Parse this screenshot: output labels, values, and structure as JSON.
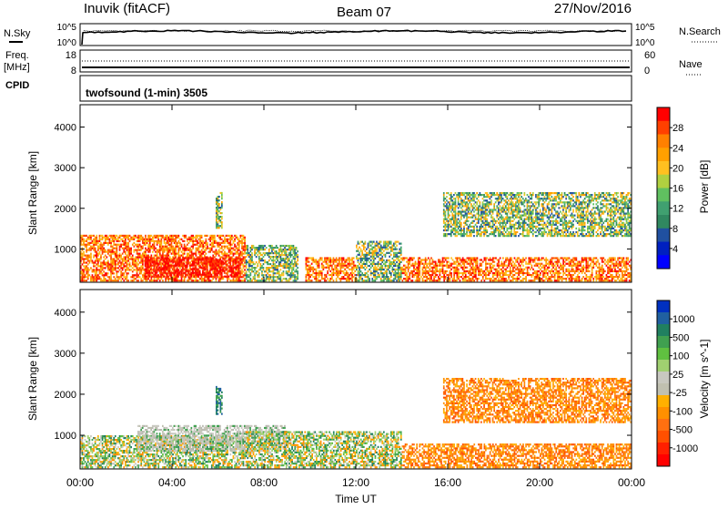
{
  "header": {
    "station": "Inuvik (fitACF)",
    "beam": "Beam 07",
    "date": "27/Nov/2016"
  },
  "noise_panel": {
    "left_label": "N.Sky",
    "right_label": "N.Search",
    "tick_top": "10^5",
    "tick_bottom": "10^0"
  },
  "freq_panel": {
    "left_label_line1": "Freq.",
    "left_label_line2": "[MHz]",
    "right_label": "Nave",
    "left_tick_top": "18",
    "left_tick_bottom": "8",
    "right_tick_top": "60",
    "right_tick_bottom": "0"
  },
  "cpid_panel": {
    "left_label": "CPID",
    "program": "twofsound (1-min) 3505"
  },
  "chart_data": [
    {
      "type": "heatmap",
      "panel": "power",
      "ylabel": "Slant Range [km]",
      "ylim": [
        180,
        4550
      ],
      "y_ticks": [
        1000,
        2000,
        3000,
        4000
      ],
      "colorbar_label": "Power [dB]",
      "colorbar_ticks": [
        "28",
        "24",
        "20",
        "16",
        "12",
        "8",
        "4"
      ],
      "colorbar_colors": [
        "#ff0000",
        "#ff4000",
        "#ff8000",
        "#ffa000",
        "#ffc020",
        "#b0d040",
        "#60c060",
        "#40a070",
        "#308860",
        "#2050a0",
        "#0020c0",
        "#0000ff"
      ],
      "echo_regions": [
        {
          "t_start": 0.0,
          "t_end": 7.2,
          "r_min": 200,
          "r_max": 1350,
          "level": "high"
        },
        {
          "t_start": 2.8,
          "t_end": 7.0,
          "r_min": 300,
          "r_max": 800,
          "level": "very_high"
        },
        {
          "t_start": 5.9,
          "t_end": 6.2,
          "r_min": 1500,
          "r_max": 2400,
          "level": "mid"
        },
        {
          "t_start": 7.2,
          "t_end": 9.5,
          "r_min": 200,
          "r_max": 1100,
          "level": "mid"
        },
        {
          "t_start": 9.8,
          "t_end": 12.0,
          "r_min": 200,
          "r_max": 800,
          "level": "high"
        },
        {
          "t_start": 12.0,
          "t_end": 14.0,
          "r_min": 200,
          "r_max": 1200,
          "level": "mid"
        },
        {
          "t_start": 14.0,
          "t_end": 24.0,
          "r_min": 200,
          "r_max": 800,
          "level": "high"
        },
        {
          "t_start": 15.8,
          "t_end": 24.0,
          "r_min": 1300,
          "r_max": 2400,
          "level": "mid"
        }
      ]
    },
    {
      "type": "heatmap",
      "panel": "velocity",
      "ylabel": "Slant Range [km]",
      "xlabel": "Time UT",
      "ylim": [
        180,
        4550
      ],
      "y_ticks": [
        1000,
        2000,
        3000,
        4000
      ],
      "x_ticks": [
        "00:00",
        "04:00",
        "08:00",
        "12:00",
        "16:00",
        "20:00",
        "00:00"
      ],
      "colorbar_label": "Velocity [m s^-1]",
      "colorbar_ticks": [
        "1000",
        "500",
        "100",
        "25",
        "-25",
        "-100",
        "-500",
        "-1000"
      ],
      "colorbar_colors": [
        "#0030c0",
        "#2060a0",
        "#208060",
        "#40a050",
        "#60c040",
        "#a0d070",
        "#c8c8c0",
        "#c0c0b0",
        "#ffb000",
        "#ff9000",
        "#ff7010",
        "#ff5000",
        "#ff2000",
        "#ff0000"
      ],
      "echo_regions": [
        {
          "t_start": 0.0,
          "t_end": 7.2,
          "r_min": 200,
          "r_max": 1000,
          "level": "mixed"
        },
        {
          "t_start": 2.5,
          "t_end": 9.0,
          "r_min": 600,
          "r_max": 1250,
          "level": "ground"
        },
        {
          "t_start": 5.9,
          "t_end": 6.2,
          "r_min": 1500,
          "r_max": 2200,
          "level": "positive"
        },
        {
          "t_start": 7.2,
          "t_end": 14.0,
          "r_min": 200,
          "r_max": 1100,
          "level": "mixed"
        },
        {
          "t_start": 14.0,
          "t_end": 24.0,
          "r_min": 200,
          "r_max": 800,
          "level": "negative"
        },
        {
          "t_start": 15.8,
          "t_end": 24.0,
          "r_min": 1300,
          "r_max": 2400,
          "level": "negative"
        }
      ]
    }
  ]
}
